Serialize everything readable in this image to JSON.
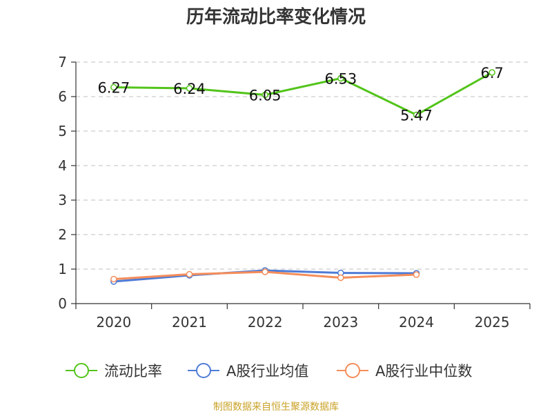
{
  "chart_data": {
    "type": "line",
    "title": "历年流动比率变化情况",
    "categories": [
      "2020",
      "2021",
      "2022",
      "2023",
      "2024",
      "2025"
    ],
    "ylim": [
      0,
      7
    ],
    "yticks": [
      0,
      1,
      2,
      3,
      4,
      5,
      6,
      7
    ],
    "grid": true,
    "legend_position": "bottom",
    "series": [
      {
        "name": "流动比率",
        "color": "#52c41a",
        "values": [
          6.27,
          6.24,
          6.05,
          6.53,
          5.47,
          6.7
        ],
        "data_labels": [
          "6.27",
          "6.24",
          "6.05",
          "6.53",
          "5.47",
          "6.7"
        ]
      },
      {
        "name": "A股行业均值",
        "color": "#4e7bd6",
        "values": [
          0.64,
          0.82,
          0.96,
          0.89,
          0.88,
          null
        ]
      },
      {
        "name": "A股行业中位数",
        "color": "#f58d5a",
        "values": [
          0.71,
          0.85,
          0.92,
          0.75,
          0.84,
          null
        ]
      }
    ]
  },
  "footer": {
    "source": "制图数据来自恒生聚源数据库",
    "color": "#c9a227"
  }
}
